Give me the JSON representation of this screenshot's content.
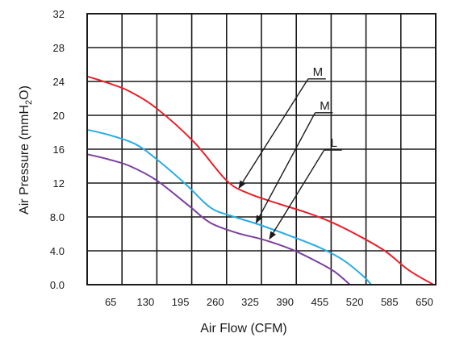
{
  "chart_data": {
    "type": "line",
    "xlabel": "Air Flow (CFM)",
    "ylabel_main": "Air Pressure (mmH",
    "ylabel_sub": "2",
    "ylabel_end": "O)",
    "xlim": [
      0,
      650
    ],
    "ylim": [
      0,
      32
    ],
    "x_ticks": [
      65,
      130,
      195,
      260,
      325,
      390,
      455,
      520,
      585,
      650
    ],
    "x_tick_labels": [
      "65",
      "130",
      "195",
      "260",
      "325",
      "390",
      "455",
      "520",
      "585",
      "650"
    ],
    "y_ticks": [
      0,
      4,
      8,
      12,
      16,
      20,
      24,
      28,
      32
    ],
    "y_tick_labels": [
      "0.0",
      "4.0",
      "8.0",
      "12",
      "16",
      "20",
      "24",
      "28",
      "32"
    ],
    "grid": true,
    "series": [
      {
        "name": "M",
        "color": "#e8202a",
        "points": [
          [
            0,
            24.6
          ],
          [
            40,
            23.8
          ],
          [
            80,
            22.8
          ],
          [
            130,
            20.8
          ],
          [
            200,
            16.8
          ],
          [
            260,
            12.3
          ],
          [
            300,
            10.8
          ],
          [
            355,
            9.6
          ],
          [
            410,
            8.5
          ],
          [
            455,
            7.4
          ],
          [
            500,
            6.0
          ],
          [
            555,
            4.0
          ],
          [
            600,
            1.7
          ],
          [
            646,
            0
          ]
        ]
      },
      {
        "name": "M",
        "color": "#29abe2",
        "points": [
          [
            0,
            18.3
          ],
          [
            40,
            17.7
          ],
          [
            90,
            16.6
          ],
          [
            130,
            14.8
          ],
          [
            185,
            11.8
          ],
          [
            230,
            9.1
          ],
          [
            270,
            8.1
          ],
          [
            325,
            7.0
          ],
          [
            390,
            5.5
          ],
          [
            440,
            4.2
          ],
          [
            480,
            2.8
          ],
          [
            515,
            1.0
          ],
          [
            530,
            0
          ]
        ]
      },
      {
        "name": "L",
        "color": "#7b3f9e",
        "points": [
          [
            0,
            15.4
          ],
          [
            40,
            14.8
          ],
          [
            80,
            14.0
          ],
          [
            130,
            12.3
          ],
          [
            190,
            9.3
          ],
          [
            230,
            7.3
          ],
          [
            280,
            6.1
          ],
          [
            330,
            5.3
          ],
          [
            380,
            4.2
          ],
          [
            420,
            3.0
          ],
          [
            460,
            1.6
          ],
          [
            490,
            0
          ]
        ]
      }
    ],
    "annotations": [
      {
        "label": "M",
        "target_series": 0,
        "target": [
          283,
          11.4
        ],
        "label_at": [
          412,
          24.3
        ]
      },
      {
        "label": "M",
        "target_series": 1,
        "target": [
          315,
          7.3
        ],
        "label_at": [
          425,
          20.3
        ]
      },
      {
        "label": "L",
        "target_series": 2,
        "target": [
          340,
          5.4
        ],
        "label_at": [
          442,
          15.9
        ]
      }
    ]
  }
}
